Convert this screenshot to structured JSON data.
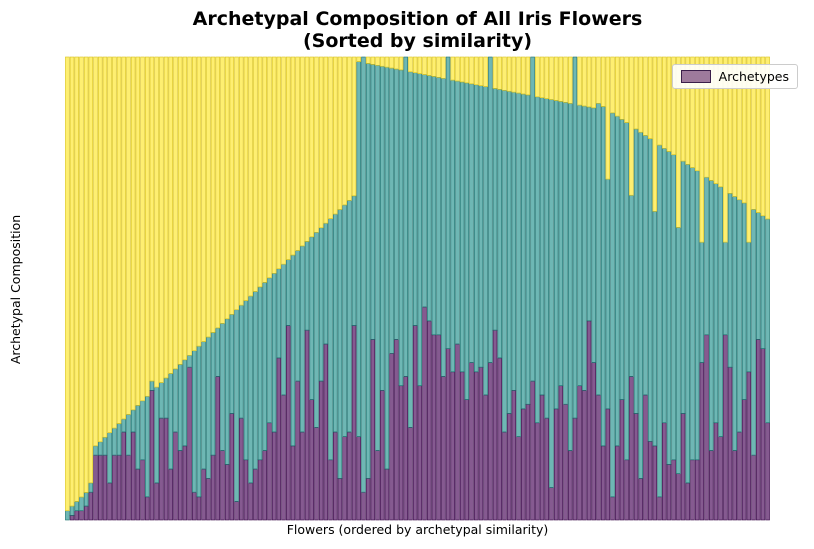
{
  "chart_data": {
    "type": "bar",
    "stacked": true,
    "title": "Archetypal Composition of All Iris Flowers\n(Sorted by similarity)",
    "xlabel": "Flowers (ordered by archetypal similarity)",
    "ylabel": "Archetypal Composition",
    "ylim": [
      0,
      1
    ],
    "x_ticks_shown": false,
    "y_ticks_shown": false,
    "grid": false,
    "legend": {
      "entries": [
        "Archetypes"
      ],
      "placement": "top-right"
    },
    "series_colors": [
      "#440154",
      "#21918c",
      "#fde725"
    ],
    "series_layer_names": [
      "archetype-1",
      "archetype-2",
      "archetype-3"
    ],
    "bottom_layer": [
      0,
      0.01,
      0.02,
      0.02,
      0.03,
      0.06,
      0.14,
      0.14,
      0.14,
      0.08,
      0.14,
      0.14,
      0.19,
      0.14,
      0.19,
      0.11,
      0.13,
      0.05,
      0.28,
      0.08,
      0.22,
      0.22,
      0.11,
      0.19,
      0.15,
      0.16,
      0.33,
      0.06,
      0.05,
      0.11,
      0.09,
      0.14,
      0.31,
      0.15,
      0.12,
      0.23,
      0.04,
      0.22,
      0.13,
      0.08,
      0.11,
      0.13,
      0.15,
      0.21,
      0.19,
      0.35,
      0.27,
      0.42,
      0.16,
      0.3,
      0.19,
      0.41,
      0.26,
      0.2,
      0.3,
      0.38,
      0.13,
      0.19,
      0.09,
      0.18,
      0.19,
      0.42,
      0.18,
      0.06,
      0.09,
      0.39,
      0.15,
      0.28,
      0.11,
      0.36,
      0.39,
      0.29,
      0.31,
      0.2,
      0.42,
      0.29,
      0.46,
      0.43,
      0.4,
      0.4,
      0.31,
      0.37,
      0.32,
      0.38,
      0.32,
      0.26,
      0.34,
      0.32,
      0.33,
      0.27,
      0.34,
      0.41,
      0.35,
      0.19,
      0.23,
      0.28,
      0.18,
      0.24,
      0.25,
      0.3,
      0.21,
      0.27,
      0.22,
      0.07,
      0.24,
      0.29,
      0.25,
      0.15,
      0.22,
      0.29,
      0.28,
      0.43,
      0.34,
      0.27,
      0.16,
      0.24,
      0.05,
      0.16,
      0.26,
      0.13,
      0.31,
      0.23,
      0.09,
      0.27,
      0.17,
      0.16,
      0.05,
      0.21,
      0.12,
      0.13,
      0.1,
      0.23,
      0.08,
      0.13,
      0.13,
      0.34,
      0.4,
      0.15,
      0.21,
      0.18,
      0.4,
      0.33,
      0.15,
      0.19,
      0.26,
      0.32,
      0.14,
      0.39,
      0.37,
      0.21
    ],
    "middle_layer": [
      0,
      0.01,
      0.02,
      0.02,
      0.03,
      0.06,
      0.14,
      0.14,
      0.14,
      0.08,
      0.14,
      0.14,
      0.19,
      0.14,
      0.19,
      0.11,
      0.13,
      0.05,
      0.28,
      0.08,
      0.22,
      0.22,
      0.11,
      0.19,
      0.15,
      0.16,
      0.33,
      0.06,
      0.05,
      0.11,
      0.09,
      0.14,
      0.31,
      0.15,
      0.12,
      0.23,
      0.04,
      0.22,
      0.13,
      0.08,
      0.11,
      0.13,
      0.15,
      0.21,
      0.19,
      0.35,
      0.27,
      0.42,
      0.16,
      0.3,
      0.19,
      0.41,
      0.26,
      0.2,
      0.3,
      0.38,
      0.13,
      0.19,
      0.09,
      0.18,
      0.19,
      0.42,
      0.18,
      0.06,
      0.09,
      0.39,
      0.15,
      0.28,
      0.11,
      0.36,
      0.39,
      0.29,
      0.31,
      0.2,
      0.42,
      0.29,
      0.46,
      0.43,
      0.4,
      0.4,
      0.31,
      0.37,
      0.32,
      0.38,
      0.32,
      0.26,
      0.34,
      0.32,
      0.33,
      0.27,
      0.34,
      0.41,
      0.35,
      0.19,
      0.23,
      0.28,
      0.18,
      0.24,
      0.25,
      0.3,
      0.21,
      0.27,
      0.22,
      0.07,
      0.24,
      0.29,
      0.25,
      0.15,
      0.22,
      0.29,
      0.28,
      0.43,
      0.34,
      0.27,
      0.16,
      0.24,
      0.05,
      0.16,
      0.26,
      0.13,
      0.31,
      0.23,
      0.09,
      0.27,
      0.17,
      0.16,
      0.05,
      0.21,
      0.12,
      0.13,
      0.1,
      0.23,
      0.08,
      0.13,
      0.13,
      0.34,
      0.4,
      0.15,
      0.21,
      0.18,
      0.4,
      0.33,
      0.15,
      0.19,
      0.26,
      0.32,
      0.14,
      0.39,
      0.37,
      0.21
    ]
  }
}
